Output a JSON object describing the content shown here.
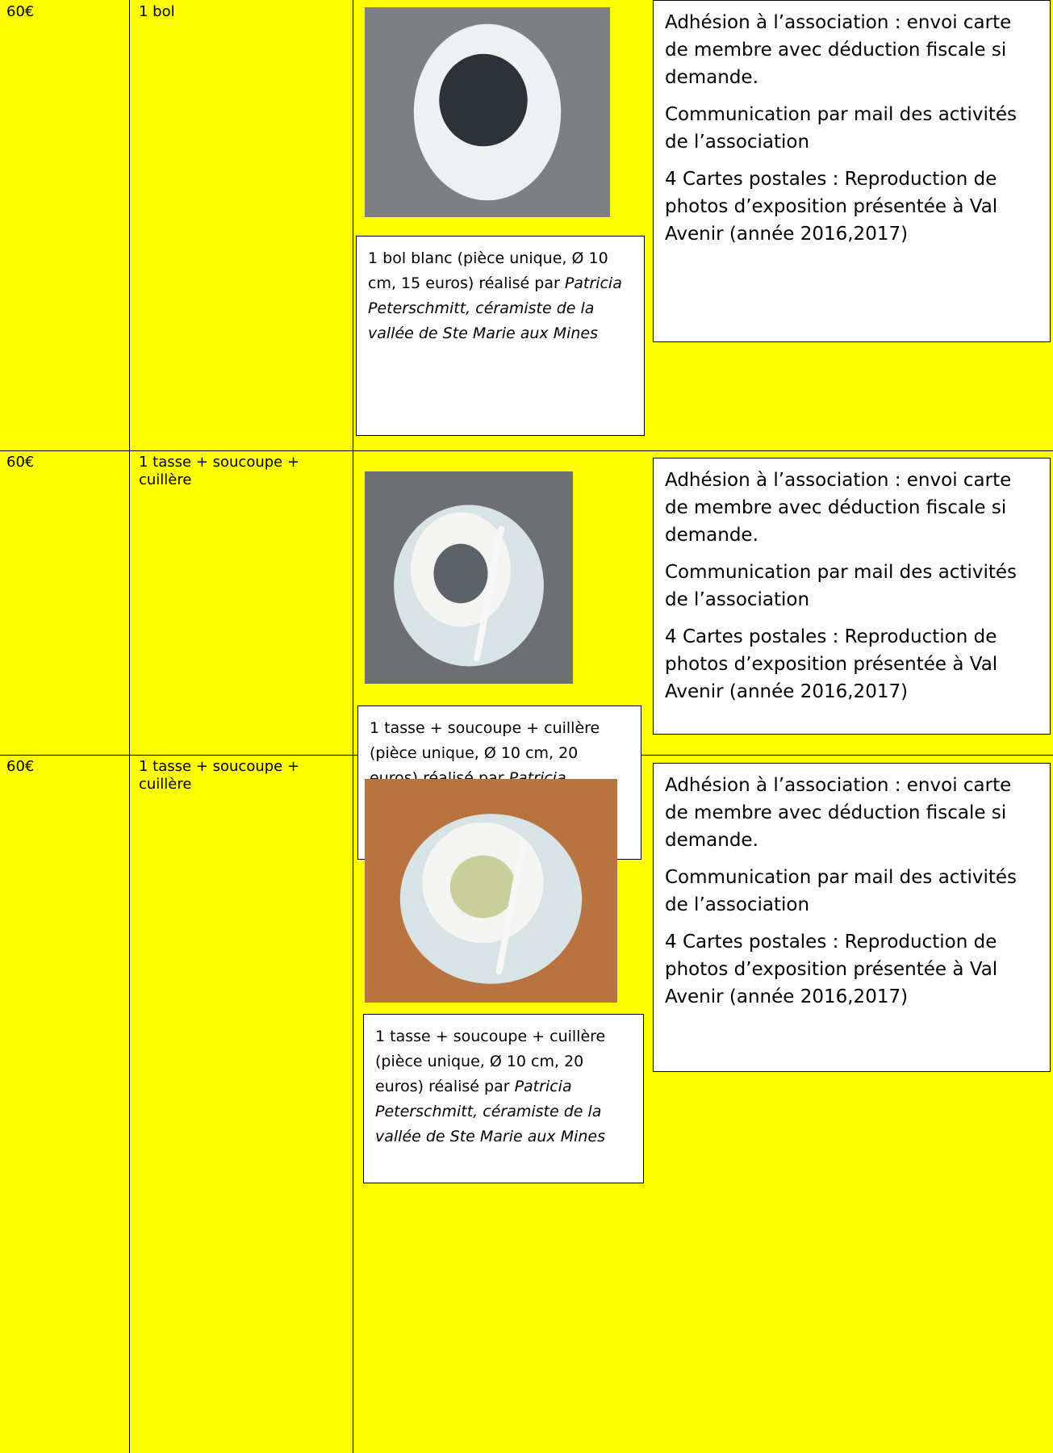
{
  "table": {
    "rows": [
      {
        "price": "60€",
        "item": "1 bol",
        "caption": {
          "text": " 1 bol blanc (pièce unique, Ø 10 cm, 15 euros) réalisé par ",
          "artist": "Patricia Peterschmitt, céramiste de la vallée de Ste Marie aux Mines"
        },
        "benefits": [
          "Adhésion à l’association : envoi carte de membre avec déduction fiscale si demande.",
          "Communication par mail des activités de l’association",
          "4 Cartes postales : Reproduction de photos d’exposition présentée à Val Avenir (année 2016,2017)"
        ]
      },
      {
        "price": "60€",
        "item": "1 tasse + soucoupe + cuillère",
        "caption": {
          "text": " 1 tasse + soucoupe + cuillère (pièce unique, Ø 10 cm, 20 euros) réalisé par ",
          "artist": "Patricia Peterschmitt, céramiste de la vallée de Ste Marie aux Mines"
        },
        "benefits": [
          "Adhésion à l’association : envoi carte de membre avec déduction fiscale si demande.",
          "Communication par mail des activités de l’association",
          "4 Cartes postales : Reproduction de photos d’exposition présentée à Val Avenir (année 2016,2017)"
        ]
      },
      {
        "price": "60€",
        "item": "1 tasse + soucoupe + cuillère",
        "caption": {
          "text": " 1 tasse + soucoupe + cuillère (pièce unique, Ø 10 cm, 20 euros) réalisé par ",
          "artist": "Patricia Peterschmitt, céramiste de la vallée de Ste Marie aux Mines"
        },
        "benefits": [
          "Adhésion à l’association : envoi carte de membre avec déduction fiscale si demande.",
          "Communication par mail des activités de l’association",
          "4 Cartes postales : Reproduction de photos d’exposition présentée à Val Avenir (année 2016,2017)"
        ]
      }
    ]
  }
}
